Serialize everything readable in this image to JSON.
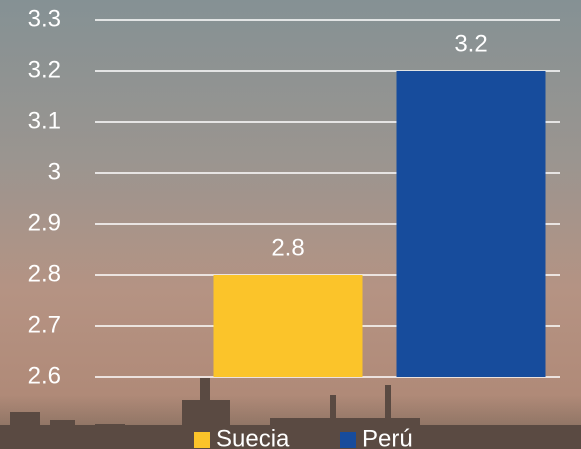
{
  "chart_data": {
    "type": "bar",
    "categories": [
      null
    ],
    "series": [
      {
        "name": "Suecia",
        "color": "#fbc42a",
        "values": [
          2.8
        ]
      },
      {
        "name": "Perú",
        "color": "#174c9c",
        "values": [
          3.2
        ]
      }
    ],
    "ylim": [
      2.6,
      3.3
    ],
    "yticks": [
      2.6,
      2.7,
      2.8,
      2.9,
      3,
      3.1,
      3.2,
      3.3
    ],
    "grid": true,
    "legend": "bottom"
  }
}
